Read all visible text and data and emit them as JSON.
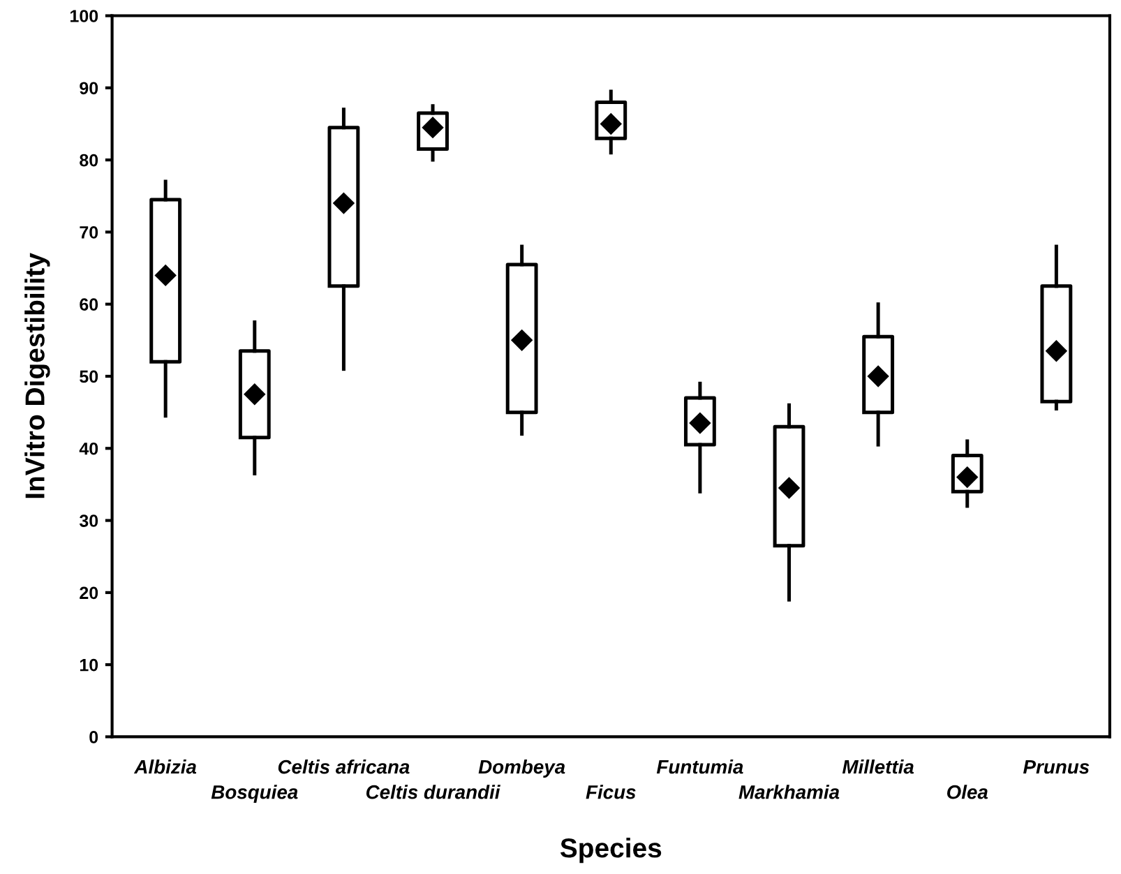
{
  "chart_data": {
    "type": "box",
    "xlabel": "Species",
    "ylabel": "InVitro Digestibility",
    "categories": [
      "Albizia",
      "Bosquiea",
      "Celtis africana",
      "Celtis durandii",
      "Dombeya",
      "Ficus",
      "Funtumia",
      "Markhamia",
      "Millettia",
      "Olea",
      "Prunus"
    ],
    "boxes": [
      {
        "low": 44.5,
        "q1": 52,
        "median": 64,
        "q3": 74.5,
        "high": 77
      },
      {
        "low": 36.5,
        "q1": 41.5,
        "median": 47.5,
        "q3": 53.5,
        "high": 57.5
      },
      {
        "low": 51,
        "q1": 62.5,
        "median": 74,
        "q3": 84.5,
        "high": 87
      },
      {
        "low": 80,
        "q1": 81.5,
        "median": 84.5,
        "q3": 86.5,
        "high": 87.5
      },
      {
        "low": 42,
        "q1": 45,
        "median": 55,
        "q3": 65.5,
        "high": 68
      },
      {
        "low": 81,
        "q1": 83,
        "median": 85,
        "q3": 88,
        "high": 89.5
      },
      {
        "low": 34,
        "q1": 40.5,
        "median": 43.5,
        "q3": 47,
        "high": 49
      },
      {
        "low": 19,
        "q1": 26.5,
        "median": 34.5,
        "q3": 43,
        "high": 46
      },
      {
        "low": 40.5,
        "q1": 45,
        "median": 50,
        "q3": 55.5,
        "high": 60
      },
      {
        "low": 32,
        "q1": 34,
        "median": 36,
        "q3": 39,
        "high": 41
      },
      {
        "low": 45.5,
        "q1": 46.5,
        "median": 53.5,
        "q3": 62.5,
        "high": 68
      }
    ],
    "ylim": [
      0,
      100
    ],
    "yticks": [
      0,
      10,
      20,
      30,
      40,
      50,
      60,
      70,
      80,
      90,
      100
    ],
    "marker": "diamond",
    "grid": false,
    "legend": false
  }
}
